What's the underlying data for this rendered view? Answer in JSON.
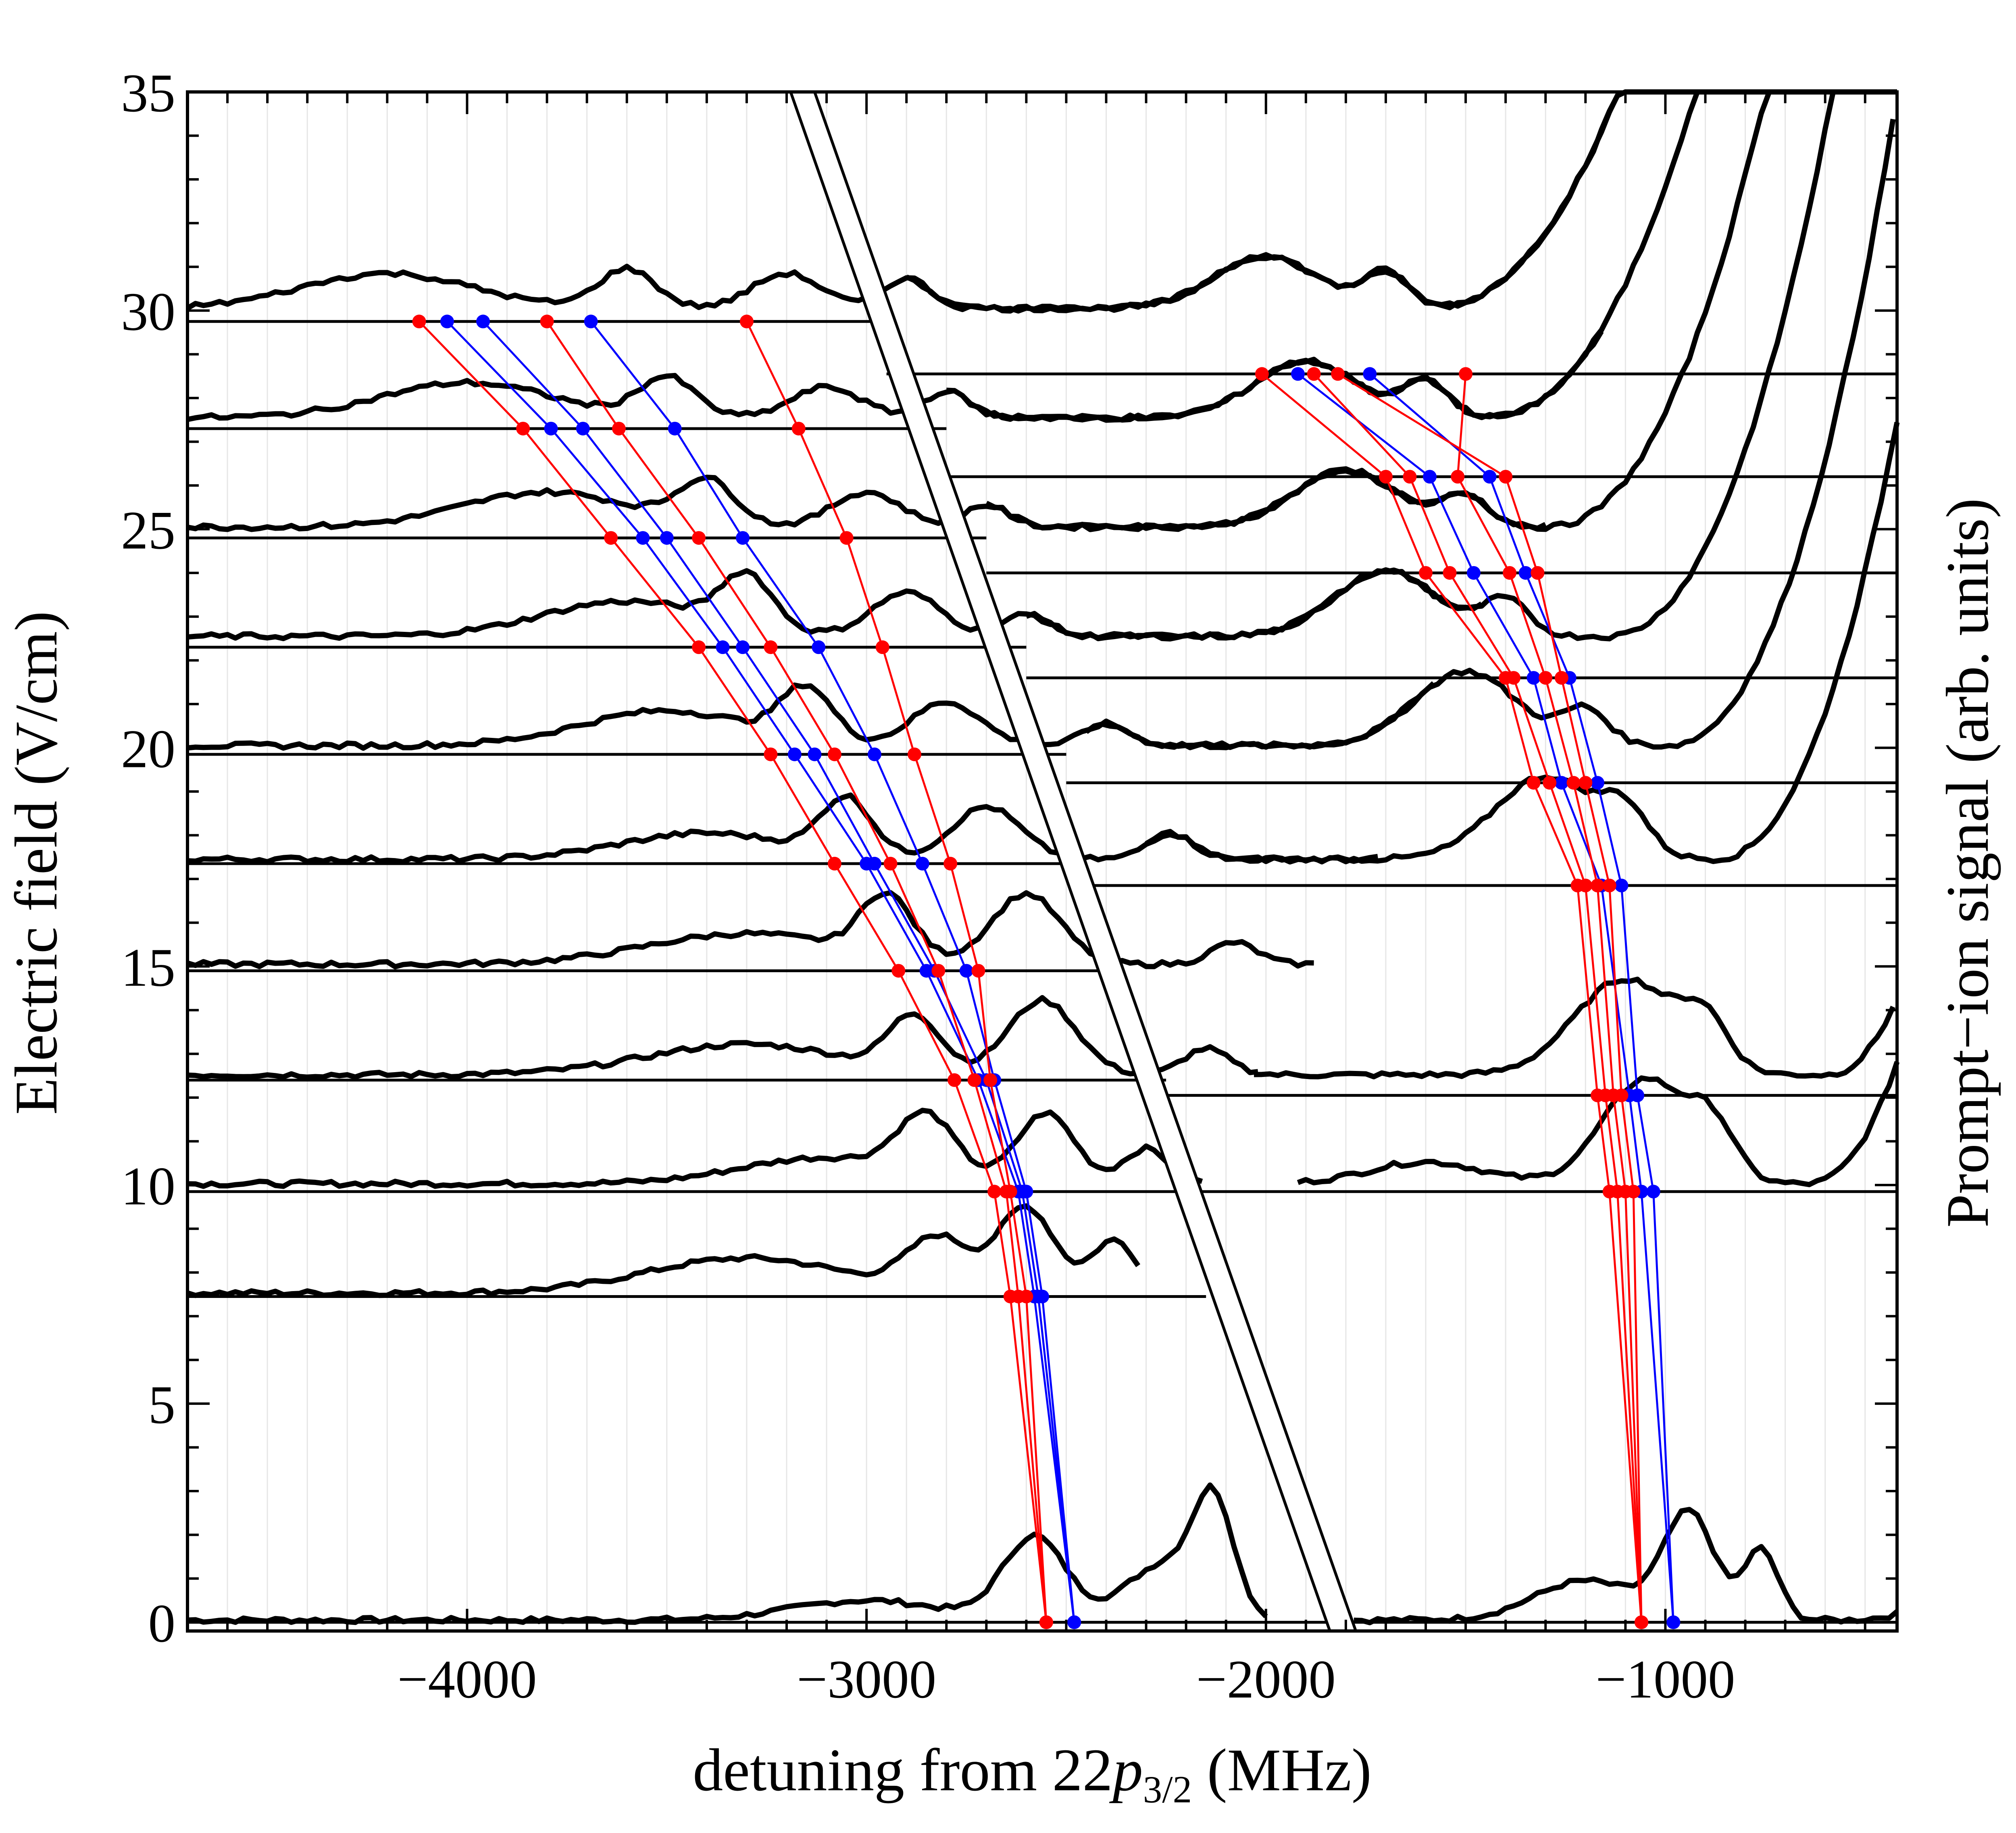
{
  "chart_data": {
    "type": "line",
    "xlabel": {
      "pre": "detuning from 22",
      "sym": "p",
      "sub": "3/2",
      "post": " (MHz)"
    },
    "ylabel": "Electric field (V/cm)",
    "y2label": "Prompt−ion signal (arb. units)",
    "xlim": [
      -4700,
      -420
    ],
    "ylim": [
      -0.2,
      35
    ],
    "xticks": [
      -4000,
      -3000,
      -2000,
      -1000
    ],
    "xtick_labels": [
      "−4000",
      "−3000",
      "−2000",
      "−1000"
    ],
    "yticks": [
      0,
      5,
      10,
      15,
      20,
      25,
      30,
      35
    ],
    "ytick_labels": [
      "0",
      "5",
      "10",
      "15",
      "20",
      "25",
      "30",
      "35"
    ],
    "grid": "vertical-light",
    "colors": {
      "spectrum": "#000000",
      "red_series": "#ff0000",
      "blue_series": "#0000ff",
      "baseline": "#000000"
    },
    "diagonal_band": [
      {
        "x_top": -3190,
        "x_bottom": -1840
      },
      {
        "x_top": -3130,
        "x_bottom": -1775
      }
    ],
    "spectra": [
      {
        "field": 0,
        "offset": 0.05,
        "left_to": -2000,
        "right_from": -1780,
        "bumps": [
          [
            -3000,
            0.45,
            260
          ],
          [
            -2580,
            1.9,
            110
          ],
          [
            -2250,
            1.3,
            140
          ],
          [
            -2130,
            2.4,
            70
          ],
          [
            -1200,
            0.9,
            180
          ],
          [
            -940,
            2.4,
            90
          ],
          [
            -760,
            1.6,
            60
          ]
        ],
        "rise_at": -560,
        "rise_amp": 3.5
      },
      {
        "field": 7.5,
        "offset": 0.03,
        "left_to": -2320,
        "right_from": null,
        "bumps": [
          [
            -3300,
            0.8,
            350
          ],
          [
            -2820,
            1.2,
            110
          ],
          [
            -2600,
            1.95,
            100
          ],
          [
            -2380,
            1.2,
            80
          ]
        ],
        "rise_at": null,
        "rise_amp": 0
      },
      {
        "field": 10,
        "offset": 0.03,
        "left_to": -2160,
        "right_from": -1920,
        "bumps": [
          [
            -3100,
            0.6,
            300
          ],
          [
            -2850,
            1.35,
            100
          ],
          [
            -2550,
            1.6,
            100
          ],
          [
            -2300,
            0.8,
            80
          ],
          [
            -1600,
            0.5,
            200
          ],
          [
            -1050,
            2.4,
            150
          ],
          [
            -880,
            1.1,
            80
          ]
        ],
        "rise_at": -650,
        "rise_amp": 23
      },
      {
        "field": 12.5,
        "offset": 0.02,
        "left_to": -2020,
        "right_from": -2030,
        "bumps": [
          [
            -3300,
            0.7,
            350
          ],
          [
            -2880,
            1.25,
            90
          ],
          [
            -2560,
            1.7,
            120
          ],
          [
            -2150,
            0.6,
            80
          ],
          [
            -1100,
            2.2,
            180
          ],
          [
            -900,
            1.0,
            80
          ]
        ],
        "rise_at": -600,
        "rise_amp": 25
      },
      {
        "field": 15,
        "offset": 0.05,
        "left_to": -1880,
        "right_from": null,
        "bumps": [
          [
            -3300,
            0.7,
            350
          ],
          [
            -2950,
            1.4,
            90
          ],
          [
            -2600,
            1.6,
            120
          ],
          [
            -2080,
            0.5,
            80
          ],
          [
            -1200,
            2.0,
            180
          ],
          [
            -1000,
            0.9,
            80
          ]
        ],
        "rise_at": -780,
        "rise_amp": 20
      },
      {
        "field": 17.4,
        "offset": 0.05,
        "left_to": -1720,
        "right_from": -2300,
        "bumps": [
          [
            -3400,
            0.6,
            300
          ],
          [
            -3050,
            1.3,
            90
          ],
          [
            -2700,
            1.2,
            120
          ],
          [
            -2240,
            0.6,
            80
          ],
          [
            -1300,
            1.9,
            180
          ],
          [
            -1100,
            0.9,
            80
          ]
        ],
        "rise_at": -880,
        "rise_amp": 18
      },
      {
        "field": 20,
        "offset": 0.05,
        "left_to": -1580,
        "right_from": -2450,
        "bumps": [
          [
            -3500,
            0.8,
            300
          ],
          [
            -3150,
            1.2,
            90
          ],
          [
            -2800,
            1.0,
            120
          ],
          [
            -2400,
            0.5,
            80
          ],
          [
            -1500,
            1.7,
            180
          ],
          [
            -1200,
            0.8,
            80
          ]
        ],
        "rise_at": -1000,
        "rise_amp": 16
      },
      {
        "field": 22.5,
        "offset": 0.05,
        "left_to": -1450,
        "right_from": -2600,
        "bumps": [
          [
            -3600,
            0.8,
            300
          ],
          [
            -3300,
            1.2,
            90
          ],
          [
            -2900,
            1.0,
            120
          ],
          [
            -2600,
            0.5,
            80
          ],
          [
            -1700,
            1.5,
            180
          ],
          [
            -1400,
            0.8,
            80
          ]
        ],
        "rise_at": -1150,
        "rise_amp": 14
      },
      {
        "field": 25,
        "offset": 0.05,
        "left_to": -1300,
        "right_from": -2700,
        "bumps": [
          [
            -3800,
            0.8,
            300
          ],
          [
            -3400,
            1.0,
            100
          ],
          [
            -3000,
            0.8,
            120
          ],
          [
            -2700,
            0.5,
            80
          ],
          [
            -1800,
            1.3,
            180
          ],
          [
            -1500,
            0.7,
            80
          ]
        ],
        "rise_at": -1300,
        "rise_amp": 12
      },
      {
        "field": 27.5,
        "offset": 0.05,
        "left_to": -1150,
        "right_from": -2800,
        "bumps": [
          [
            -4000,
            0.8,
            300
          ],
          [
            -3500,
            0.9,
            100
          ],
          [
            -3100,
            0.7,
            120
          ],
          [
            -2800,
            0.6,
            80
          ],
          [
            -1900,
            1.3,
            180
          ],
          [
            -1600,
            0.8,
            80
          ]
        ],
        "rise_at": -1450,
        "rise_amp": 10
      },
      {
        "field": 30,
        "offset": 0.05,
        "left_to": -1000,
        "right_from": -2900,
        "bumps": [
          [
            -4200,
            0.8,
            300
          ],
          [
            -3600,
            0.9,
            100
          ],
          [
            -3200,
            0.8,
            120
          ],
          [
            -2900,
            0.7,
            80
          ],
          [
            -2000,
            1.2,
            180
          ],
          [
            -1700,
            0.8,
            80
          ]
        ],
        "rise_at": -1600,
        "rise_amp": 8
      }
    ],
    "baselines": [
      {
        "y": 0,
        "x_from": -4700,
        "x_to": -420
      },
      {
        "y": 7.45,
        "x_from": -4700,
        "x_to": -2150
      },
      {
        "y": 9.85,
        "x_from": -4700,
        "x_to": -420
      },
      {
        "y": 12.4,
        "x_from": -4700,
        "x_to": -2250
      },
      {
        "y": 12.05,
        "x_from": -2250,
        "x_to": -420
      },
      {
        "y": 14.9,
        "x_from": -4700,
        "x_to": -2400
      },
      {
        "y": 17.35,
        "x_from": -4700,
        "x_to": -2450
      },
      {
        "y": 16.85,
        "x_from": -2450,
        "x_to": -420
      },
      {
        "y": 19.85,
        "x_from": -4700,
        "x_to": -2500
      },
      {
        "y": 19.2,
        "x_from": -2500,
        "x_to": -420
      },
      {
        "y": 22.3,
        "x_from": -4700,
        "x_to": -2600
      },
      {
        "y": 21.6,
        "x_from": -2600,
        "x_to": -420
      },
      {
        "y": 24.8,
        "x_from": -4700,
        "x_to": -2700
      },
      {
        "y": 24.0,
        "x_from": -2700,
        "x_to": -420
      },
      {
        "y": 27.3,
        "x_from": -4700,
        "x_to": -2800
      },
      {
        "y": 26.2,
        "x_from": -2800,
        "x_to": -420
      },
      {
        "y": 29.75,
        "x_from": -4700,
        "x_to": -2950
      },
      {
        "y": 28.55,
        "x_from": -2950,
        "x_to": -420
      }
    ],
    "series_left": [
      {
        "color": "red",
        "points": [
          [
            -2550,
            0
          ],
          [
            -2640,
            7.45
          ],
          [
            -2680,
            9.85
          ],
          [
            -2780,
            12.4
          ],
          [
            -2920,
            14.9
          ],
          [
            -3080,
            17.35
          ],
          [
            -3240,
            19.85
          ],
          [
            -3420,
            22.3
          ],
          [
            -3640,
            24.8
          ],
          [
            -3860,
            27.3
          ],
          [
            -4120,
            29.75
          ]
        ]
      },
      {
        "color": "blue",
        "points": [
          [
            -2480,
            0
          ],
          [
            -2580,
            7.45
          ],
          [
            -2620,
            9.85
          ],
          [
            -2720,
            12.4
          ],
          [
            -2850,
            14.9
          ],
          [
            -3000,
            17.35
          ],
          [
            -3180,
            19.85
          ],
          [
            -3360,
            22.3
          ],
          [
            -3560,
            24.8
          ],
          [
            -3790,
            27.3
          ],
          [
            -4050,
            29.75
          ]
        ]
      },
      {
        "color": "blue",
        "points": [
          [
            -2480,
            0
          ],
          [
            -2570,
            7.45
          ],
          [
            -2610,
            9.85
          ],
          [
            -2700,
            12.4
          ],
          [
            -2830,
            14.9
          ],
          [
            -2980,
            17.35
          ],
          [
            -3130,
            19.85
          ],
          [
            -3310,
            22.3
          ],
          [
            -3500,
            24.8
          ],
          [
            -3710,
            27.3
          ],
          [
            -3960,
            29.75
          ]
        ]
      },
      {
        "color": "red",
        "points": [
          [
            -2550,
            0
          ],
          [
            -2620,
            7.45
          ],
          [
            -2650,
            9.85
          ],
          [
            -2730,
            12.4
          ],
          [
            -2820,
            14.9
          ],
          [
            -2940,
            17.35
          ],
          [
            -3080,
            19.85
          ],
          [
            -3240,
            22.3
          ],
          [
            -3420,
            24.8
          ],
          [
            -3620,
            27.3
          ],
          [
            -3800,
            29.75
          ]
        ]
      },
      {
        "color": "blue",
        "points": [
          [
            -2480,
            0
          ],
          [
            -2560,
            7.45
          ],
          [
            -2600,
            9.85
          ],
          [
            -2680,
            12.4
          ],
          [
            -2750,
            14.9
          ],
          [
            -2860,
            17.35
          ],
          [
            -2980,
            19.85
          ],
          [
            -3120,
            22.3
          ],
          [
            -3310,
            24.8
          ],
          [
            -3480,
            27.3
          ],
          [
            -3690,
            29.75
          ]
        ]
      },
      {
        "color": "red",
        "points": [
          [
            -2550,
            0
          ],
          [
            -2600,
            7.45
          ],
          [
            -2640,
            9.85
          ],
          [
            -2690,
            12.4
          ],
          [
            -2720,
            14.9
          ],
          [
            -2790,
            17.35
          ],
          [
            -2880,
            19.85
          ],
          [
            -2960,
            22.3
          ],
          [
            -3050,
            24.8
          ],
          [
            -3170,
            27.3
          ],
          [
            -3300,
            29.75
          ]
        ]
      }
    ],
    "series_right": [
      {
        "color": "red",
        "points": [
          [
            -1060,
            0
          ],
          [
            -1140,
            9.85
          ],
          [
            -1170,
            12.05
          ],
          [
            -1220,
            16.85
          ],
          [
            -1330,
            19.2
          ],
          [
            -1400,
            21.6
          ],
          [
            -1600,
            24.0
          ],
          [
            -1700,
            26.2
          ],
          [
            -2010,
            28.55
          ]
        ]
      },
      {
        "color": "blue",
        "points": [
          [
            -980,
            0
          ],
          [
            -1060,
            9.85
          ],
          [
            -1090,
            12.05
          ],
          [
            -1160,
            16.85
          ],
          [
            -1260,
            19.2
          ],
          [
            -1330,
            21.6
          ],
          [
            -1480,
            24.0
          ],
          [
            -1590,
            26.2
          ],
          [
            -1920,
            28.55
          ]
        ]
      },
      {
        "color": "red",
        "points": [
          [
            -1060,
            0
          ],
          [
            -1120,
            9.85
          ],
          [
            -1150,
            12.05
          ],
          [
            -1200,
            16.85
          ],
          [
            -1290,
            19.2
          ],
          [
            -1380,
            21.6
          ],
          [
            -1540,
            24.0
          ],
          [
            -1640,
            26.2
          ],
          [
            -1880,
            28.55
          ]
        ]
      },
      {
        "color": "blue",
        "points": [
          [
            -980,
            0
          ],
          [
            -1030,
            9.85
          ],
          [
            -1070,
            12.05
          ],
          [
            -1110,
            16.85
          ],
          [
            -1170,
            19.2
          ],
          [
            -1240,
            21.6
          ],
          [
            -1350,
            24.0
          ],
          [
            -1440,
            26.2
          ],
          [
            -1740,
            28.55
          ]
        ]
      },
      {
        "color": "red",
        "points": [
          [
            -1060,
            0
          ],
          [
            -1100,
            9.85
          ],
          [
            -1130,
            12.05
          ],
          [
            -1170,
            16.85
          ],
          [
            -1230,
            19.2
          ],
          [
            -1300,
            21.6
          ],
          [
            -1390,
            24.0
          ],
          [
            -1520,
            26.2
          ],
          [
            -1500,
            28.55
          ]
        ]
      },
      {
        "color": "red",
        "points": [
          [
            -1060,
            0
          ],
          [
            -1080,
            9.85
          ],
          [
            -1110,
            12.05
          ],
          [
            -1140,
            16.85
          ],
          [
            -1200,
            19.2
          ],
          [
            -1260,
            21.6
          ],
          [
            -1320,
            24.0
          ],
          [
            -1400,
            26.2
          ],
          [
            -1820,
            28.55
          ]
        ]
      }
    ]
  }
}
